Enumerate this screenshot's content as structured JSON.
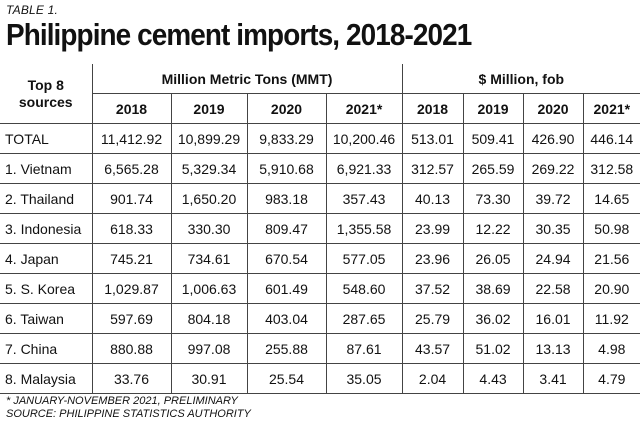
{
  "table_label": "TABLE 1.",
  "title": "Philippine cement imports, 2018-2021",
  "header": {
    "sources_label_line1": "Top 8",
    "sources_label_line2": "sources",
    "group_volume": "Million Metric Tons (MMT)",
    "group_value": "$ Million, fob",
    "years": [
      "2018",
      "2019",
      "2020",
      "2021*"
    ]
  },
  "rows": [
    {
      "source": "TOTAL",
      "mmt": [
        "11,412.92",
        "10,899.29",
        "9,833.29",
        "10,200.46"
      ],
      "usd": [
        "513.01",
        "509.41",
        "426.90",
        "446.14"
      ]
    },
    {
      "source": "1. Vietnam",
      "mmt": [
        "6,565.28",
        "5,329.34",
        "5,910.68",
        "6,921.33"
      ],
      "usd": [
        "312.57",
        "265.59",
        "269.22",
        "312.58"
      ]
    },
    {
      "source": "2. Thailand",
      "mmt": [
        "901.74",
        "1,650.20",
        "983.18",
        "357.43"
      ],
      "usd": [
        "40.13",
        "73.30",
        "39.72",
        "14.65"
      ]
    },
    {
      "source": "3. Indonesia",
      "mmt": [
        "618.33",
        "330.30",
        "809.47",
        "1,355.58"
      ],
      "usd": [
        "23.99",
        "12.22",
        "30.35",
        "50.98"
      ]
    },
    {
      "source": "4. Japan",
      "mmt": [
        "745.21",
        "734.61",
        "670.54",
        "577.05"
      ],
      "usd": [
        "23.96",
        "26.05",
        "24.94",
        "21.56"
      ]
    },
    {
      "source": "5. S. Korea",
      "mmt": [
        "1,029.87",
        "1,006.63",
        "601.49",
        "548.60"
      ],
      "usd": [
        "37.52",
        "38.69",
        "22.58",
        "20.90"
      ]
    },
    {
      "source": "6. Taiwan",
      "mmt": [
        "597.69",
        "804.18",
        "403.04",
        "287.65"
      ],
      "usd": [
        "25.79",
        "36.02",
        "16.01",
        "11.92"
      ]
    },
    {
      "source": "7. China",
      "mmt": [
        "880.88",
        "997.08",
        "255.88",
        "87.61"
      ],
      "usd": [
        "43.57",
        "51.02",
        "13.13",
        "4.98"
      ]
    },
    {
      "source": "8. Malaysia",
      "mmt": [
        "33.76",
        "30.91",
        "25.54",
        "35.05"
      ],
      "usd": [
        "2.04",
        "4.43",
        "3.41",
        "4.79"
      ]
    }
  ],
  "footnote_line1": "* JANUARY-NOVEMBER 2021, PRELIMINARY",
  "footnote_line2": "SOURCE: PHILIPPINE STATISTICS AUTHORITY"
}
